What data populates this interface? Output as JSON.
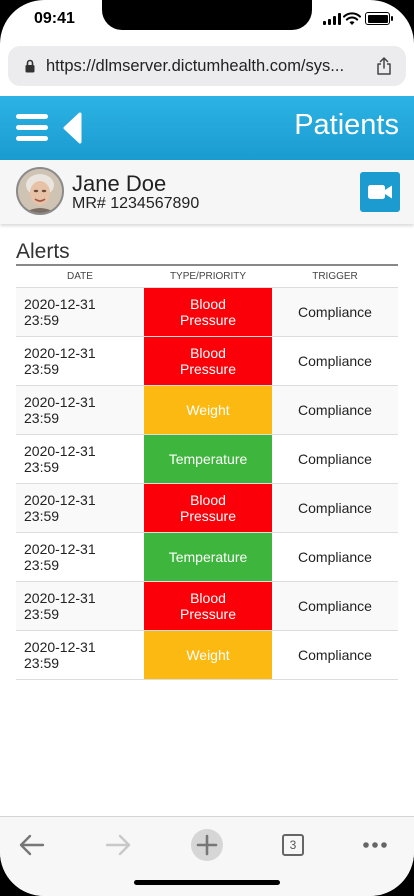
{
  "status_bar": {
    "time": "09:41"
  },
  "browser": {
    "url": "https://dlmserver.dictumhealth.com/sys...",
    "tab_count": "3"
  },
  "header": {
    "title": "Patients"
  },
  "patient": {
    "name": "Jane Doe",
    "mr": "MR# 1234567890"
  },
  "alerts": {
    "title": "Alerts",
    "columns": [
      "DATE",
      "TYPE/PRIORITY",
      "TRIGGER"
    ],
    "rows": [
      {
        "date": "2020-12-31",
        "time": "23:59",
        "type_line1": "Blood",
        "type_line2": "Pressure",
        "priority": "red",
        "trigger": "Compliance"
      },
      {
        "date": "2020-12-31",
        "time": "23:59",
        "type_line1": "Blood",
        "type_line2": "Pressure",
        "priority": "red",
        "trigger": "Compliance"
      },
      {
        "date": "2020-12-31",
        "time": "23:59",
        "type_line1": "Weight",
        "type_line2": "",
        "priority": "yellow",
        "trigger": "Compliance"
      },
      {
        "date": "2020-12-31",
        "time": "23:59",
        "type_line1": "Temperature",
        "type_line2": "",
        "priority": "green",
        "trigger": "Compliance"
      },
      {
        "date": "2020-12-31",
        "time": "23:59",
        "type_line1": "Blood",
        "type_line2": "Pressure",
        "priority": "red",
        "trigger": "Compliance"
      },
      {
        "date": "2020-12-31",
        "time": "23:59",
        "type_line1": "Temperature",
        "type_line2": "",
        "priority": "green",
        "trigger": "Compliance"
      },
      {
        "date": "2020-12-31",
        "time": "23:59",
        "type_line1": "Blood",
        "type_line2": "Pressure",
        "priority": "red",
        "trigger": "Compliance"
      },
      {
        "date": "2020-12-31",
        "time": "23:59",
        "type_line1": "Weight",
        "type_line2": "",
        "priority": "yellow",
        "trigger": "Compliance"
      }
    ]
  },
  "colors": {
    "header_blue": "#1b9bd0",
    "priority_red": "#fb0008",
    "priority_yellow": "#fcb911",
    "priority_green": "#3eb53c"
  },
  "icons": [
    "lock-icon",
    "share-icon",
    "hamburger-icon",
    "back-arrow-icon",
    "video-camera-icon",
    "back-icon",
    "forward-icon",
    "new-tab-icon",
    "tabs-icon",
    "more-icon"
  ]
}
